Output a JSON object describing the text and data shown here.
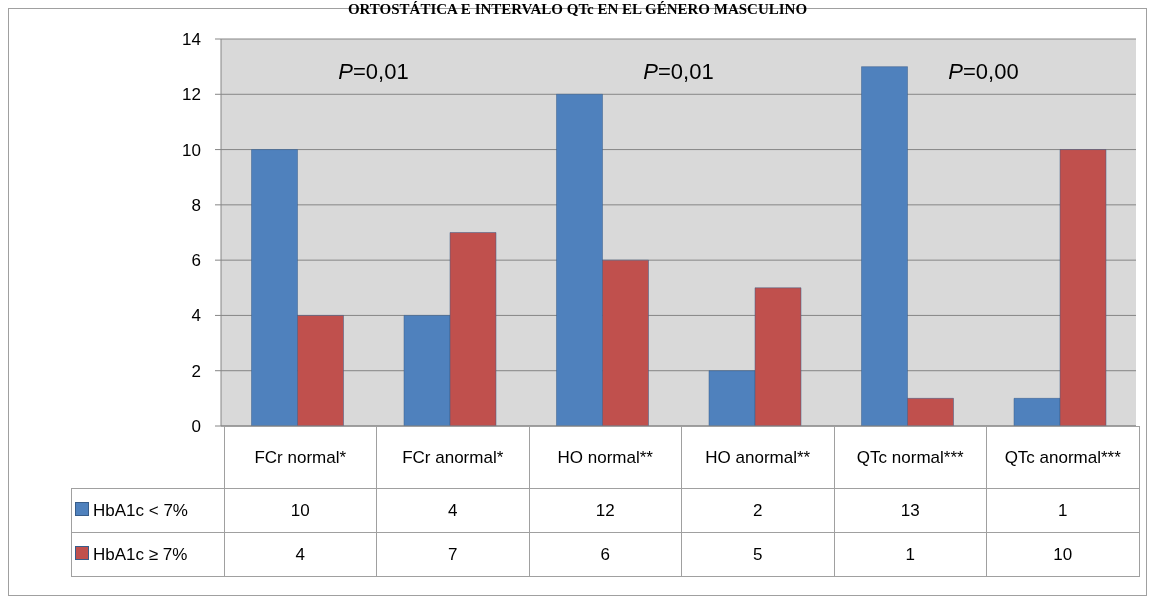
{
  "chart_data": {
    "type": "bar",
    "title": "ORTOSTÁTICA E INTERVALO QTc EN EL GÉNERO MASCULINO",
    "categories": [
      "FCr normal*",
      "FCr anormal*",
      "HO normal**",
      "HO anormal**",
      "QTc normal***",
      "QTc anormal***"
    ],
    "series": [
      {
        "name": "HbA1c < 7%",
        "color": "#4f81bd",
        "values": [
          10,
          4,
          12,
          2,
          13,
          1
        ]
      },
      {
        "name": "HbA1c ≥ 7%",
        "color": "#c0504d",
        "values": [
          4,
          7,
          6,
          5,
          1,
          10
        ]
      }
    ],
    "ylim": [
      0,
      14
    ],
    "yticks": [
      0,
      2,
      4,
      6,
      8,
      10,
      12,
      14
    ],
    "grid": "y",
    "legend": "bottom left",
    "data_labels": true,
    "annotations": [
      "P=0,01",
      "P=0,01",
      "P=0,00"
    ]
  }
}
